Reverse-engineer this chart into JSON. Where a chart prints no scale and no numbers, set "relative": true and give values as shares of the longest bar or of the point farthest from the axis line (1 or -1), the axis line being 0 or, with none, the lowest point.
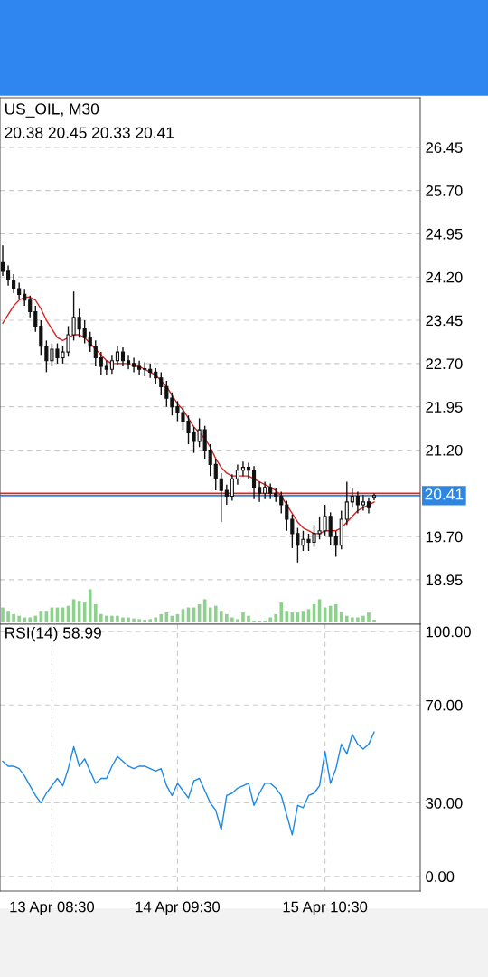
{
  "chart_data": [
    {
      "type": "candlestick",
      "title": "US_OIL, M30",
      "subtitle": "20.38 20.45 20.33 20.41",
      "color": "#111111",
      "categories": [
        null,
        null,
        null,
        null,
        null,
        null,
        null,
        null,
        null,
        null,
        null,
        null,
        null,
        null,
        null,
        null,
        null,
        null,
        null,
        null,
        null,
        null,
        null,
        null,
        null,
        null,
        null,
        null,
        null,
        null,
        null,
        null,
        null,
        null,
        null,
        null,
        null,
        null,
        null,
        null,
        null,
        null,
        null,
        null,
        null,
        null,
        null,
        null,
        null,
        null,
        null,
        null,
        null,
        null,
        null,
        null,
        null,
        null,
        null,
        null,
        null,
        null,
        null,
        null,
        null,
        null,
        null,
        null,
        null
      ],
      "ohlc": [
        [
          24.45,
          24.75,
          24.22,
          24.3
        ],
        [
          24.3,
          24.4,
          24.05,
          24.15
        ],
        [
          24.15,
          24.25,
          23.92,
          24.0
        ],
        [
          24.0,
          24.1,
          23.82,
          23.9
        ],
        [
          23.9,
          23.98,
          23.7,
          23.8
        ],
        [
          23.8,
          23.88,
          23.5,
          23.6
        ],
        [
          23.6,
          23.7,
          23.25,
          23.35
        ],
        [
          23.35,
          23.45,
          22.85,
          23.0
        ],
        [
          23.0,
          23.1,
          22.55,
          22.75
        ],
        [
          22.75,
          23.05,
          22.65,
          22.95
        ],
        [
          22.95,
          23.05,
          22.7,
          22.8
        ],
        [
          22.8,
          23.0,
          22.7,
          22.9
        ],
        [
          22.9,
          23.35,
          22.82,
          23.2
        ],
        [
          23.2,
          23.95,
          23.1,
          23.5
        ],
        [
          23.5,
          23.65,
          23.15,
          23.3
        ],
        [
          23.3,
          23.45,
          23.05,
          23.15
        ],
        [
          23.15,
          23.25,
          22.9,
          23.0
        ],
        [
          23.0,
          23.1,
          22.65,
          22.8
        ],
        [
          22.8,
          22.9,
          22.5,
          22.65
        ],
        [
          22.65,
          22.75,
          22.5,
          22.6
        ],
        [
          22.6,
          22.85,
          22.52,
          22.75
        ],
        [
          22.75,
          23.0,
          22.68,
          22.9
        ],
        [
          22.9,
          22.98,
          22.65,
          22.75
        ],
        [
          22.75,
          22.85,
          22.6,
          22.7
        ],
        [
          22.7,
          22.8,
          22.55,
          22.65
        ],
        [
          22.65,
          22.75,
          22.5,
          22.6
        ],
        [
          22.6,
          22.72,
          22.48,
          22.6
        ],
        [
          22.6,
          22.7,
          22.45,
          22.55
        ],
        [
          22.55,
          22.62,
          22.35,
          22.45
        ],
        [
          22.45,
          22.55,
          22.15,
          22.3
        ],
        [
          22.3,
          22.4,
          21.95,
          22.1
        ],
        [
          22.1,
          22.2,
          21.8,
          21.95
        ],
        [
          21.95,
          22.05,
          21.7,
          21.85
        ],
        [
          21.85,
          21.95,
          21.55,
          21.7
        ],
        [
          21.7,
          21.8,
          21.3,
          21.5
        ],
        [
          21.5,
          21.6,
          21.15,
          21.35
        ],
        [
          21.35,
          21.75,
          21.25,
          21.55
        ],
        [
          21.55,
          21.62,
          21.05,
          21.2
        ],
        [
          21.2,
          21.3,
          20.75,
          20.95
        ],
        [
          20.95,
          21.05,
          20.5,
          20.7
        ],
        [
          20.7,
          20.8,
          19.95,
          20.5
        ],
        [
          20.5,
          20.6,
          20.25,
          20.4
        ],
        [
          20.4,
          20.78,
          20.32,
          20.7
        ],
        [
          20.7,
          20.95,
          20.6,
          20.85
        ],
        [
          20.85,
          21.0,
          20.75,
          20.9
        ],
        [
          20.9,
          20.98,
          20.7,
          20.85
        ],
        [
          20.85,
          20.92,
          20.35,
          20.55
        ],
        [
          20.55,
          20.65,
          20.3,
          20.45
        ],
        [
          20.45,
          20.65,
          20.35,
          20.55
        ],
        [
          20.55,
          20.62,
          20.35,
          20.45
        ],
        [
          20.45,
          20.55,
          20.3,
          20.4
        ],
        [
          20.4,
          20.48,
          20.1,
          20.25
        ],
        [
          20.25,
          20.32,
          19.8,
          20.0
        ],
        [
          20.0,
          20.08,
          19.5,
          19.75
        ],
        [
          19.75,
          19.85,
          19.25,
          19.55
        ],
        [
          19.55,
          19.8,
          19.45,
          19.65
        ],
        [
          19.65,
          19.75,
          19.45,
          19.6
        ],
        [
          19.6,
          19.9,
          19.52,
          19.75
        ],
        [
          19.75,
          20.05,
          19.65,
          19.8
        ],
        [
          19.8,
          20.25,
          19.72,
          20.05
        ],
        [
          20.05,
          20.12,
          19.55,
          19.7
        ],
        [
          19.7,
          19.8,
          19.35,
          19.55
        ],
        [
          19.55,
          20.15,
          19.48,
          20.0
        ],
        [
          20.0,
          20.65,
          19.9,
          20.3
        ],
        [
          20.3,
          20.55,
          20.2,
          20.4
        ],
        [
          20.4,
          20.48,
          20.1,
          20.25
        ],
        [
          20.25,
          20.42,
          20.15,
          20.3
        ],
        [
          20.3,
          20.38,
          20.1,
          20.2
        ],
        [
          20.38,
          20.45,
          20.33,
          20.41
        ]
      ],
      "series": [
        {
          "type": "line",
          "color": "#d62020",
          "values": [
            23.4,
            23.55,
            23.7,
            23.8,
            23.85,
            23.85,
            23.8,
            23.65,
            23.45,
            23.3,
            23.15,
            23.1,
            23.15,
            23.2,
            23.2,
            23.15,
            23.05,
            22.95,
            22.85,
            22.75,
            22.7,
            22.7,
            22.7,
            22.7,
            22.65,
            22.65,
            22.6,
            22.55,
            22.5,
            22.4,
            22.3,
            22.15,
            22.0,
            21.9,
            21.75,
            21.6,
            21.5,
            21.4,
            21.25,
            21.05,
            20.9,
            20.8,
            20.75,
            20.75,
            20.75,
            20.75,
            20.7,
            20.65,
            20.6,
            20.55,
            20.5,
            20.4,
            20.25,
            20.1,
            19.95,
            19.85,
            19.8,
            19.75,
            19.75,
            19.8,
            19.8,
            19.8,
            19.85,
            19.95,
            20.05,
            20.15,
            20.2,
            20.25,
            20.3
          ]
        }
      ],
      "ylim": [
        18.18,
        27.31
      ],
      "yticks": [
        {
          "value": 18.95,
          "label": "18.95"
        },
        {
          "value": 19.7,
          "label": "19.70"
        },
        {
          "value": 21.2,
          "label": "21.20"
        },
        {
          "value": 21.95,
          "label": "21.95"
        },
        {
          "value": 22.7,
          "label": "22.70"
        },
        {
          "value": 23.45,
          "label": "23.45"
        },
        {
          "value": 24.2,
          "label": "24.20"
        },
        {
          "value": 24.95,
          "label": "24.95"
        },
        {
          "value": 25.7,
          "label": "25.70"
        },
        {
          "value": 26.45,
          "label": "26.45"
        }
      ],
      "ref_lines": [
        {
          "axis": "y",
          "value": 20.45,
          "color": "#e02828"
        },
        {
          "axis": "y",
          "value": 20.41,
          "label": "20.41",
          "color": "#2f86e0"
        }
      ],
      "grid": true,
      "tick_labels": "y"
    },
    {
      "type": "bar",
      "relative": true,
      "color": "#8fd08f",
      "categories": [
        null,
        null,
        null,
        null,
        null,
        null,
        null,
        null,
        null,
        null,
        null,
        null,
        null,
        null,
        null,
        null,
        null,
        null,
        null,
        null,
        null,
        null,
        null,
        null,
        null,
        null,
        null,
        null,
        null,
        null,
        null,
        null,
        null,
        null,
        null,
        null,
        null,
        null,
        null,
        null,
        null,
        null,
        null,
        null,
        null,
        null,
        null,
        null,
        null,
        null,
        null,
        null,
        null,
        null,
        null,
        null,
        null,
        null,
        null,
        null,
        null,
        null,
        null,
        null,
        null,
        null,
        null,
        null,
        null
      ],
      "values": [
        0.45,
        0.35,
        0.25,
        0.2,
        0.15,
        0.15,
        0.2,
        0.35,
        0.35,
        0.45,
        0.45,
        0.45,
        0.5,
        0.7,
        0.65,
        0.6,
        1.0,
        0.55,
        0.25,
        0.2,
        0.2,
        0.2,
        0.15,
        0.15,
        0.12,
        0.1,
        0.08,
        0.1,
        0.15,
        0.25,
        0.3,
        0.2,
        0.25,
        0.4,
        0.45,
        0.45,
        0.55,
        0.7,
        0.45,
        0.5,
        0.35,
        0.25,
        0.15,
        0.1,
        0.3,
        0.2,
        0.05,
        0.03,
        0.05,
        0.15,
        0.25,
        0.6,
        0.35,
        0.3,
        0.3,
        0.35,
        0.4,
        0.55,
        0.7,
        0.45,
        0.5,
        0.55,
        0.3,
        0.2,
        0.15,
        0.15,
        0.2,
        0.3,
        0.08
      ],
      "tick_labels": false
    },
    {
      "type": "line",
      "title": "RSI(14) 58.99",
      "color": "#1e88e5",
      "categories": [
        null,
        null,
        null,
        null,
        null,
        null,
        null,
        null,
        null,
        "13 Apr 08:30",
        null,
        null,
        null,
        null,
        null,
        null,
        null,
        null,
        null,
        null,
        null,
        null,
        null,
        null,
        null,
        null,
        null,
        null,
        null,
        null,
        null,
        null,
        "14 Apr 09:30",
        null,
        null,
        null,
        null,
        null,
        null,
        null,
        null,
        null,
        null,
        null,
        null,
        null,
        null,
        null,
        null,
        null,
        null,
        null,
        null,
        null,
        null,
        null,
        null,
        null,
        null,
        "15 Apr 10:30",
        null,
        null,
        null,
        null,
        null,
        null,
        null,
        null,
        null
      ],
      "values": [
        47,
        45,
        45,
        44,
        41,
        37,
        33,
        30,
        34,
        37,
        40,
        37,
        44,
        53,
        45,
        48,
        43,
        38,
        40,
        40,
        45,
        49,
        47,
        45,
        44,
        45,
        45,
        44,
        43,
        44,
        37,
        33,
        38,
        35,
        32,
        39,
        40,
        35,
        30,
        27,
        19,
        33,
        34,
        36,
        37,
        38,
        29,
        34,
        38,
        38,
        36,
        33,
        25,
        17,
        29,
        28,
        33,
        34,
        37,
        51,
        38,
        44,
        54,
        50,
        58,
        54,
        52,
        54,
        59
      ],
      "ylim": [
        -6,
        103
      ],
      "yticks": [
        {
          "value": 0,
          "label": "0.00"
        },
        {
          "value": 30,
          "label": "30.00"
        },
        {
          "value": 70,
          "label": "70.00"
        },
        {
          "value": 100,
          "label": "100.00"
        }
      ],
      "grid": true
    }
  ]
}
